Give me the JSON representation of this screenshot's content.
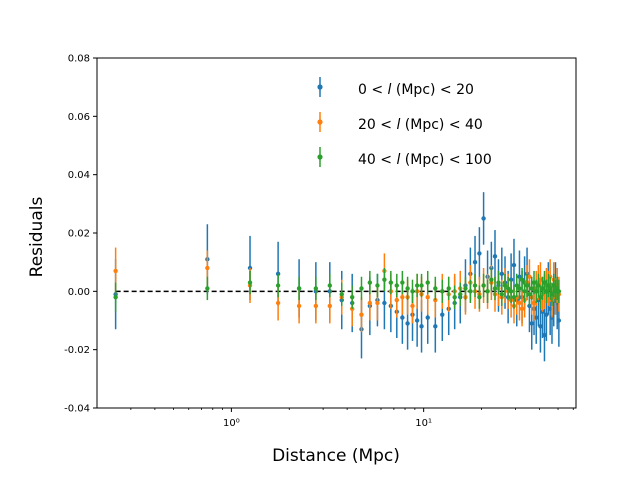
{
  "chart_data": {
    "type": "scatter",
    "title": "",
    "xlabel": "Distance (Mpc)",
    "ylabel": "Residuals",
    "x_scale": "log",
    "xlim": [
      0.2,
      62
    ],
    "ylim": [
      -0.04,
      0.08
    ],
    "x_ticks": [
      {
        "value": 1,
        "label": "10⁰"
      },
      {
        "value": 10,
        "label": "10¹"
      }
    ],
    "y_ticks": [
      {
        "value": -0.04,
        "label": "-0.04"
      },
      {
        "value": -0.02,
        "label": "-0.02"
      },
      {
        "value": 0.0,
        "label": "0.00"
      },
      {
        "value": 0.02,
        "label": "0.02"
      },
      {
        "value": 0.04,
        "label": "0.04"
      },
      {
        "value": 0.06,
        "label": "0.06"
      },
      {
        "value": 0.08,
        "label": "0.08"
      }
    ],
    "reference_line": {
      "y": 0.0,
      "style": "dashed",
      "color": "#000000"
    },
    "legend": {
      "position": "top-right"
    },
    "series": [
      {
        "name": "0 < l (Mpc) < 20",
        "legend_prefix": "0 < ",
        "legend_italic": "l",
        "legend_suffix": " (Mpc) < 20",
        "color": "#1f77b4",
        "x": [
          0.25,
          0.75,
          1.25,
          1.75,
          2.25,
          2.75,
          3.25,
          3.75,
          4.25,
          4.75,
          5.25,
          5.75,
          6.25,
          6.75,
          7.25,
          7.75,
          8.25,
          8.75,
          9.25,
          9.75,
          10.5,
          11.5,
          12.5,
          13.5,
          14.5,
          15.5,
          16.5,
          17.5,
          18.5,
          19.5,
          20.5,
          21.5,
          22.5,
          23.5,
          24.5,
          25.5,
          26.5,
          27.5,
          28.5,
          29.5,
          30.5,
          31.5,
          32.5,
          33.5,
          34.5,
          35.5,
          36.5,
          37.5,
          38.5,
          39.5,
          40.5,
          41.5,
          42.5,
          43.5,
          44.5,
          45.5,
          46.5,
          47.5,
          48.5,
          49.5,
          50.5
        ],
        "y": [
          -0.001,
          0.011,
          0.008,
          0.006,
          0.001,
          0.0,
          0.0,
          -0.003,
          -0.004,
          -0.013,
          -0.005,
          -0.003,
          -0.004,
          -0.005,
          -0.007,
          -0.009,
          -0.011,
          -0.008,
          -0.01,
          -0.012,
          -0.009,
          -0.012,
          -0.008,
          -0.006,
          -0.004,
          -0.002,
          0.002,
          0.006,
          0.01,
          0.013,
          0.025,
          0.005,
          0.008,
          0.012,
          0.002,
          0.006,
          0.003,
          -0.002,
          0.004,
          0.009,
          -0.003,
          0.005,
          -0.002,
          0.003,
          0.006,
          -0.005,
          -0.011,
          -0.006,
          -0.009,
          -0.003,
          -0.012,
          -0.007,
          -0.015,
          -0.008,
          0.001,
          -0.006,
          -0.009,
          -0.003,
          0.001,
          -0.004,
          -0.01
        ],
        "err": [
          0.012,
          0.012,
          0.011,
          0.011,
          0.01,
          0.01,
          0.01,
          0.01,
          0.01,
          0.01,
          0.01,
          0.009,
          0.009,
          0.009,
          0.009,
          0.009,
          0.009,
          0.009,
          0.009,
          0.009,
          0.009,
          0.009,
          0.009,
          0.009,
          0.009,
          0.009,
          0.009,
          0.009,
          0.009,
          0.009,
          0.009,
          0.009,
          0.009,
          0.009,
          0.009,
          0.009,
          0.009,
          0.009,
          0.009,
          0.009,
          0.009,
          0.009,
          0.009,
          0.009,
          0.009,
          0.009,
          0.009,
          0.009,
          0.009,
          0.009,
          0.009,
          0.009,
          0.009,
          0.009,
          0.009,
          0.009,
          0.009,
          0.009,
          0.009,
          0.009,
          0.009
        ]
      },
      {
        "name": "20 < l (Mpc) < 40",
        "legend_prefix": "20 < ",
        "legend_italic": "l",
        "legend_suffix": " (Mpc) < 40",
        "color": "#ff7f0e",
        "x": [
          0.25,
          0.75,
          1.25,
          1.75,
          2.25,
          2.75,
          3.25,
          3.75,
          4.25,
          4.75,
          5.25,
          5.75,
          6.25,
          6.75,
          7.25,
          7.75,
          8.25,
          8.75,
          9.25,
          9.75,
          10.5,
          11.5,
          12.5,
          13.5,
          14.5,
          15.5,
          16.5,
          17.5,
          18.5,
          19.5,
          20.5,
          21.5,
          22.5,
          23.5,
          24.5,
          25.5,
          26.5,
          27.5,
          28.5,
          29.5,
          30.5,
          31.5,
          32.5,
          33.5,
          34.5,
          35.5,
          36.5,
          37.5,
          38.5,
          39.5,
          40.5,
          41.5,
          42.5,
          43.5,
          44.5,
          45.5,
          46.5,
          47.5,
          48.5,
          49.5,
          50.5
        ],
        "y": [
          0.007,
          0.008,
          0.002,
          -0.004,
          -0.005,
          -0.005,
          -0.005,
          -0.002,
          -0.006,
          -0.008,
          -0.004,
          -0.004,
          0.007,
          0.0,
          -0.003,
          -0.002,
          -0.002,
          -0.005,
          0.0,
          -0.001,
          -0.002,
          -0.003,
          0.0,
          -0.001,
          0.0,
          0.001,
          -0.002,
          0.003,
          0.0,
          -0.001,
          0.002,
          0.0,
          0.003,
          -0.001,
          0.001,
          -0.002,
          0.002,
          0.0,
          -0.003,
          -0.005,
          -0.002,
          -0.004,
          -0.006,
          -0.003,
          0.003,
          0.005,
          -0.002,
          -0.004,
          0.001,
          0.003,
          0.004,
          -0.001,
          0.0,
          0.002,
          0.001,
          0.005,
          -0.003,
          0.004,
          -0.002,
          0.002,
          -0.001
        ],
        "err": [
          0.008,
          0.006,
          0.006,
          0.006,
          0.006,
          0.006,
          0.006,
          0.006,
          0.006,
          0.006,
          0.006,
          0.006,
          0.006,
          0.006,
          0.006,
          0.006,
          0.006,
          0.006,
          0.006,
          0.006,
          0.006,
          0.006,
          0.006,
          0.006,
          0.006,
          0.006,
          0.006,
          0.006,
          0.006,
          0.006,
          0.006,
          0.006,
          0.006,
          0.006,
          0.006,
          0.006,
          0.006,
          0.006,
          0.006,
          0.006,
          0.006,
          0.006,
          0.006,
          0.006,
          0.006,
          0.006,
          0.006,
          0.006,
          0.006,
          0.006,
          0.006,
          0.006,
          0.006,
          0.006,
          0.006,
          0.006,
          0.006,
          0.006,
          0.006,
          0.006,
          0.006
        ]
      },
      {
        "name": "40 < l (Mpc) < 100",
        "legend_prefix": "40 < ",
        "legend_italic": "l",
        "legend_suffix": " (Mpc) < 100",
        "color": "#2ca02c",
        "x": [
          0.25,
          0.75,
          1.25,
          1.75,
          2.25,
          2.75,
          3.25,
          3.75,
          4.25,
          4.75,
          5.25,
          5.75,
          6.25,
          6.75,
          7.25,
          7.75,
          8.25,
          8.75,
          9.25,
          9.75,
          10.5,
          11.5,
          12.5,
          13.5,
          14.5,
          15.5,
          16.5,
          17.5,
          18.5,
          19.5,
          20.5,
          21.5,
          22.5,
          23.5,
          24.5,
          25.5,
          26.5,
          27.5,
          28.5,
          29.5,
          30.5,
          31.5,
          32.5,
          33.5,
          34.5,
          35.5,
          36.5,
          37.5,
          38.5,
          39.5,
          40.5,
          41.5,
          42.5,
          43.5,
          44.5,
          45.5,
          46.5,
          47.5,
          48.5,
          49.5,
          50.5
        ],
        "y": [
          -0.002,
          0.001,
          0.003,
          0.002,
          0.001,
          0.001,
          0.002,
          -0.001,
          -0.002,
          0.001,
          0.003,
          0.002,
          0.004,
          0.003,
          0.002,
          0.003,
          0.001,
          0.0,
          0.002,
          0.002,
          0.003,
          0.001,
          0.0,
          0.001,
          -0.002,
          -0.001,
          0.001,
          0.0,
          0.002,
          -0.002,
          0.002,
          0.0,
          0.004,
          0.001,
          0.003,
          -0.001,
          0.002,
          0.001,
          0.0,
          -0.002,
          0.002,
          0.001,
          0.004,
          0.0,
          0.002,
          -0.001,
          0.001,
          0.003,
          0.0,
          0.002,
          -0.002,
          0.001,
          0.003,
          0.0,
          0.002,
          0.001,
          -0.001,
          0.002,
          0.0,
          0.001,
          0.0
        ],
        "err": [
          0.005,
          0.004,
          0.004,
          0.004,
          0.004,
          0.004,
          0.004,
          0.004,
          0.004,
          0.004,
          0.004,
          0.004,
          0.004,
          0.004,
          0.004,
          0.004,
          0.004,
          0.004,
          0.004,
          0.004,
          0.004,
          0.004,
          0.004,
          0.004,
          0.004,
          0.004,
          0.004,
          0.004,
          0.004,
          0.004,
          0.004,
          0.004,
          0.004,
          0.004,
          0.004,
          0.004,
          0.004,
          0.004,
          0.004,
          0.004,
          0.004,
          0.004,
          0.004,
          0.004,
          0.004,
          0.004,
          0.004,
          0.004,
          0.004,
          0.004,
          0.004,
          0.004,
          0.004,
          0.004,
          0.004,
          0.004,
          0.004,
          0.004,
          0.004,
          0.004,
          0.004
        ]
      }
    ]
  }
}
